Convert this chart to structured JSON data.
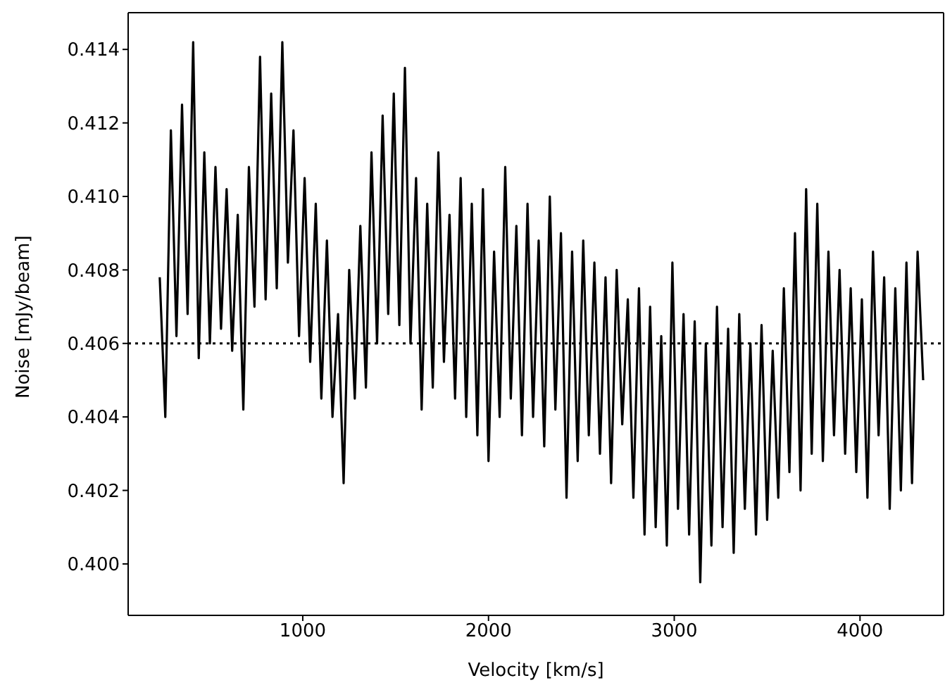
{
  "chart_data": {
    "type": "line",
    "xlabel": "Velocity [km/s]",
    "ylabel": "Noise [mJy/beam]",
    "x": [
      230,
      260,
      290,
      320,
      350,
      380,
      410,
      440,
      470,
      500,
      530,
      560,
      590,
      620,
      650,
      680,
      710,
      740,
      770,
      800,
      830,
      860,
      890,
      920,
      950,
      980,
      1010,
      1040,
      1070,
      1100,
      1130,
      1160,
      1190,
      1220,
      1250,
      1280,
      1310,
      1340,
      1370,
      1400,
      1430,
      1460,
      1490,
      1520,
      1550,
      1580,
      1610,
      1640,
      1670,
      1700,
      1730,
      1760,
      1790,
      1820,
      1850,
      1880,
      1910,
      1940,
      1970,
      2000,
      2030,
      2060,
      2090,
      2120,
      2150,
      2180,
      2210,
      2240,
      2270,
      2300,
      2330,
      2360,
      2390,
      2420,
      2450,
      2480,
      2510,
      2540,
      2570,
      2600,
      2630,
      2660,
      2690,
      2720,
      2750,
      2780,
      2810,
      2840,
      2870,
      2900,
      2930,
      2960,
      2990,
      3020,
      3050,
      3080,
      3110,
      3140,
      3170,
      3200,
      3230,
      3260,
      3290,
      3320,
      3350,
      3380,
      3410,
      3440,
      3470,
      3500,
      3530,
      3560,
      3590,
      3620,
      3650,
      3680,
      3710,
      3740,
      3770,
      3800,
      3830,
      3860,
      3890,
      3920,
      3950,
      3980,
      4010,
      4040,
      4070,
      4100,
      4130,
      4160,
      4190,
      4220,
      4250,
      4280,
      4310,
      4340
    ],
    "series": [
      {
        "color": "#000000",
        "values": [
          0.4078,
          0.404,
          0.4118,
          0.4062,
          0.4125,
          0.4068,
          0.4142,
          0.4056,
          0.4112,
          0.406,
          0.4108,
          0.4064,
          0.4102,
          0.4058,
          0.4095,
          0.4042,
          0.4108,
          0.407,
          0.4138,
          0.4072,
          0.4128,
          0.4075,
          0.4142,
          0.4082,
          0.4118,
          0.4062,
          0.4105,
          0.4055,
          0.4098,
          0.4045,
          0.4088,
          0.404,
          0.4068,
          0.4022,
          0.408,
          0.4045,
          0.4092,
          0.4048,
          0.4112,
          0.406,
          0.4122,
          0.4068,
          0.4128,
          0.4065,
          0.4135,
          0.406,
          0.4105,
          0.4042,
          0.4098,
          0.4048,
          0.4112,
          0.4055,
          0.4095,
          0.4045,
          0.4105,
          0.404,
          0.4098,
          0.4035,
          0.4102,
          0.4028,
          0.4085,
          0.404,
          0.4108,
          0.4045,
          0.4092,
          0.4035,
          0.4098,
          0.404,
          0.4088,
          0.4032,
          0.41,
          0.4042,
          0.409,
          0.4018,
          0.4085,
          0.4028,
          0.4088,
          0.4035,
          0.4082,
          0.403,
          0.4078,
          0.4022,
          0.408,
          0.4038,
          0.4072,
          0.4018,
          0.4075,
          0.4008,
          0.407,
          0.401,
          0.4062,
          0.4005,
          0.4082,
          0.4015,
          0.4068,
          0.4008,
          0.4066,
          0.3995,
          0.406,
          0.4005,
          0.407,
          0.401,
          0.4064,
          0.4003,
          0.4068,
          0.4015,
          0.406,
          0.4008,
          0.4065,
          0.4012,
          0.4058,
          0.4018,
          0.4075,
          0.4025,
          0.409,
          0.402,
          0.4102,
          0.403,
          0.4098,
          0.4028,
          0.4085,
          0.4035,
          0.408,
          0.403,
          0.4075,
          0.4025,
          0.4072,
          0.4018,
          0.4085,
          0.4035,
          0.4078,
          0.4015,
          0.4075,
          0.402,
          0.4082,
          0.4022,
          0.4085,
          0.405
        ]
      }
    ],
    "xlim": [
      60,
      4450
    ],
    "xticks": [
      1000,
      2000,
      3000,
      4000
    ],
    "ylim": [
      0.3986,
      0.415
    ],
    "yticks": [
      {
        "value": 0.4,
        "label": "0.400"
      },
      {
        "value": 0.402,
        "label": "0.402"
      },
      {
        "value": 0.404,
        "label": "0.404"
      },
      {
        "value": 0.406,
        "label": "0.406"
      },
      {
        "value": 0.408,
        "label": "0.408"
      },
      {
        "value": 0.41,
        "label": "0.410"
      },
      {
        "value": 0.412,
        "label": "0.412"
      },
      {
        "value": 0.414,
        "label": "0.414"
      }
    ],
    "ref_lines": [
      {
        "axis": "y",
        "value": 0.406,
        "color": "#000000",
        "line_style": "dotted"
      }
    ],
    "grid": false,
    "legend": false,
    "marker": "none",
    "line_style": "solid"
  }
}
